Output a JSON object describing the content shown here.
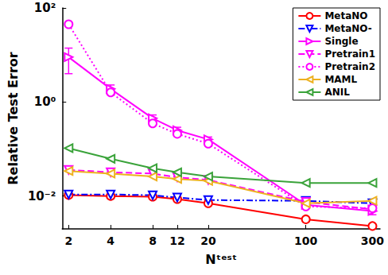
{
  "chart_data": {
    "type": "line",
    "xlabel": "Nᵗᵉˢᵗ",
    "ylabel": "Relative Test Error",
    "x": [
      2,
      4,
      8,
      12,
      20,
      100,
      300
    ],
    "xlim": [
      1.8,
      340
    ],
    "xticks": [
      2,
      4,
      8,
      12,
      20,
      100,
      300
    ],
    "ylim": [
      0.002,
      100
    ],
    "yticks": [
      {
        "value": 0.01,
        "label": "10⁻²"
      },
      {
        "value": 1,
        "label": "10⁰"
      },
      {
        "value": 100,
        "label": "10²"
      }
    ],
    "log": true,
    "grid": false,
    "legend": "top-right",
    "series": [
      {
        "name": "MetaNO",
        "color": "#ff0000",
        "marker": "circle",
        "line_style": "solid",
        "values": [
          0.0105,
          0.01,
          0.0097,
          0.0086,
          0.007,
          0.0032,
          0.0023
        ]
      },
      {
        "name": "MetaNO-",
        "color": "#0000ff",
        "marker": "triangle-down",
        "line_style": "dashdot",
        "values": [
          0.0108,
          0.0108,
          0.0104,
          0.0093,
          0.0082,
          0.0079,
          0.007
        ]
      },
      {
        "name": "Single",
        "color": "#ff00ff",
        "marker": "triangle-right",
        "line_style": "solid",
        "values": [
          9,
          1.9,
          0.45,
          0.25,
          0.16,
          0.0065,
          0.0048
        ],
        "errors": [
          5,
          0.4,
          0.08,
          0.04,
          0.02,
          0.001,
          0.0008
        ]
      },
      {
        "name": "Pretrain1",
        "color": "#ff00ff",
        "marker": "triangle-down",
        "line_style": "dashed",
        "values": [
          0.036,
          0.032,
          0.03,
          0.025,
          0.022,
          0.0075,
          0.0052
        ]
      },
      {
        "name": "Pretrain2",
        "color": "#ff00ff",
        "marker": "circle",
        "line_style": "dotted",
        "values": [
          45,
          1.6,
          0.35,
          0.21,
          0.13,
          0.006,
          0.0055
        ]
      },
      {
        "name": "MAML",
        "color": "#edb120",
        "marker": "triangle-left",
        "line_style": "solid",
        "values": [
          0.034,
          0.03,
          0.026,
          0.023,
          0.021,
          0.007,
          0.0079
        ]
      },
      {
        "name": "ANIL",
        "color": "#3aa33a",
        "marker": "triangle-left",
        "line_style": "solid",
        "values": [
          0.104,
          0.062,
          0.039,
          0.032,
          0.026,
          0.019,
          0.019
        ]
      }
    ]
  }
}
